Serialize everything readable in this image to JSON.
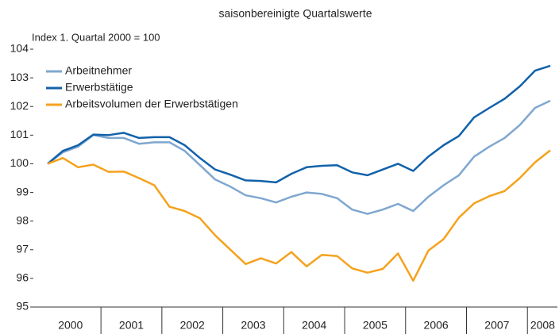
{
  "chart_data": {
    "type": "line",
    "title": "saisonbereinigte Quartalswerte",
    "y_label": "Index 1. Quartal 2000 = 100",
    "year_labels": [
      "2000",
      "2001",
      "2002",
      "2003",
      "2004",
      "2005",
      "2006",
      "2007",
      "2008"
    ],
    "ylim": [
      95,
      104
    ],
    "yticks": [
      95,
      96,
      97,
      98,
      99,
      100,
      101,
      102,
      103,
      104
    ],
    "legend": "upper left",
    "series": [
      {
        "name": "Arbeitnehmer",
        "color": "#7fa7d0",
        "values": [
          100.0,
          100.4,
          100.6,
          101.0,
          100.9,
          100.9,
          100.7,
          100.75,
          100.75,
          100.45,
          99.95,
          99.45,
          99.2,
          98.9,
          98.8,
          98.65,
          98.85,
          99.0,
          98.95,
          98.8,
          98.4,
          98.25,
          98.4,
          98.6,
          98.35,
          98.85,
          99.25,
          99.6,
          100.25,
          100.6,
          100.9,
          101.35,
          101.95,
          102.2
        ]
      },
      {
        "name": "Erwerbstätige",
        "color": "#1262aa",
        "values": [
          100.0,
          100.45,
          100.65,
          101.02,
          101.0,
          101.08,
          100.9,
          100.93,
          100.93,
          100.65,
          100.2,
          99.8,
          99.62,
          99.42,
          99.4,
          99.35,
          99.65,
          99.88,
          99.93,
          99.95,
          99.7,
          99.6,
          99.8,
          100.0,
          99.75,
          100.25,
          100.65,
          100.97,
          101.62,
          101.95,
          102.27,
          102.7,
          103.25,
          103.42
        ]
      },
      {
        "name": "Arbeitsvolumen der Erwerbstätigen",
        "color": "#f5a21d",
        "values": [
          100.0,
          100.2,
          99.88,
          99.97,
          99.72,
          99.73,
          99.5,
          99.25,
          98.5,
          98.35,
          98.1,
          97.5,
          97.0,
          96.5,
          96.7,
          96.52,
          96.92,
          96.42,
          96.82,
          96.78,
          96.35,
          96.2,
          96.33,
          96.87,
          95.92,
          96.97,
          97.37,
          98.12,
          98.62,
          98.87,
          99.05,
          99.5,
          100.05,
          100.47
        ]
      }
    ]
  }
}
